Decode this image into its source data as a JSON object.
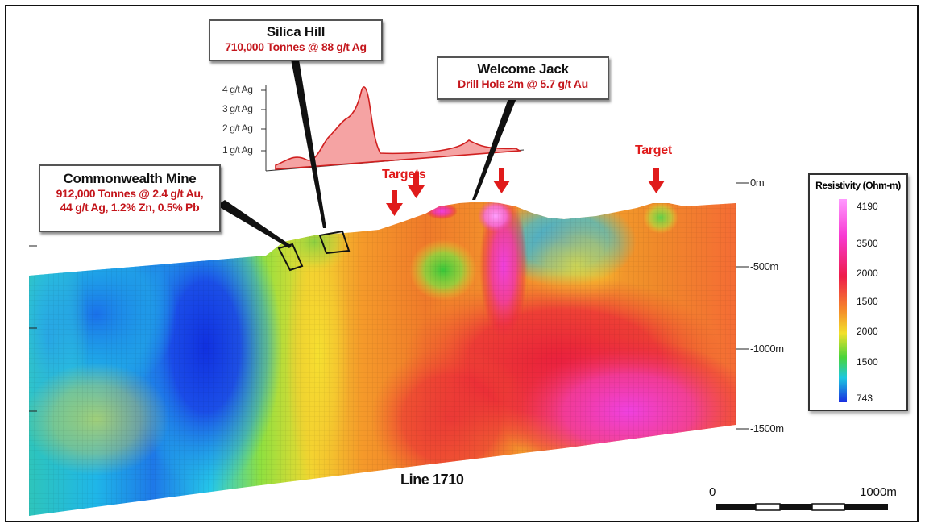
{
  "section": {
    "line_label": "Line 1710",
    "depth_labels": [
      "0m",
      "-500m",
      "-1000m",
      "-1500m"
    ]
  },
  "callouts": {
    "silica": {
      "title": "Silica Hill",
      "detail": "710,000 Tonnes @ 88 g/t Ag"
    },
    "welcome": {
      "title": "Welcome Jack",
      "detail": "Drill Hole 2m @ 5.7 g/t Au"
    },
    "commonwealth": {
      "title": "Commonwealth Mine",
      "detail_lines": [
        "912,000 Tonnes @ 2.4 g/t Au,",
        "44 g/t Ag, 1.2% Zn, 0.5% Pb"
      ]
    }
  },
  "targets": {
    "group_label": "Targets",
    "single_label": "Target"
  },
  "ag_profile": {
    "y_labels": [
      "4 g/t Ag",
      "3 g/t Ag",
      "2 g/t Ag",
      "1 g/t Ag"
    ],
    "fill_color": "#f5a3a3",
    "line_color": "#d02020"
  },
  "legend": {
    "title": "Resistivity (Ohm-m)",
    "ticks": [
      "4190",
      "3500",
      "2000",
      "1500",
      "2000",
      "1500",
      "743"
    ]
  },
  "scale": {
    "start": "0",
    "end": "1000m"
  }
}
